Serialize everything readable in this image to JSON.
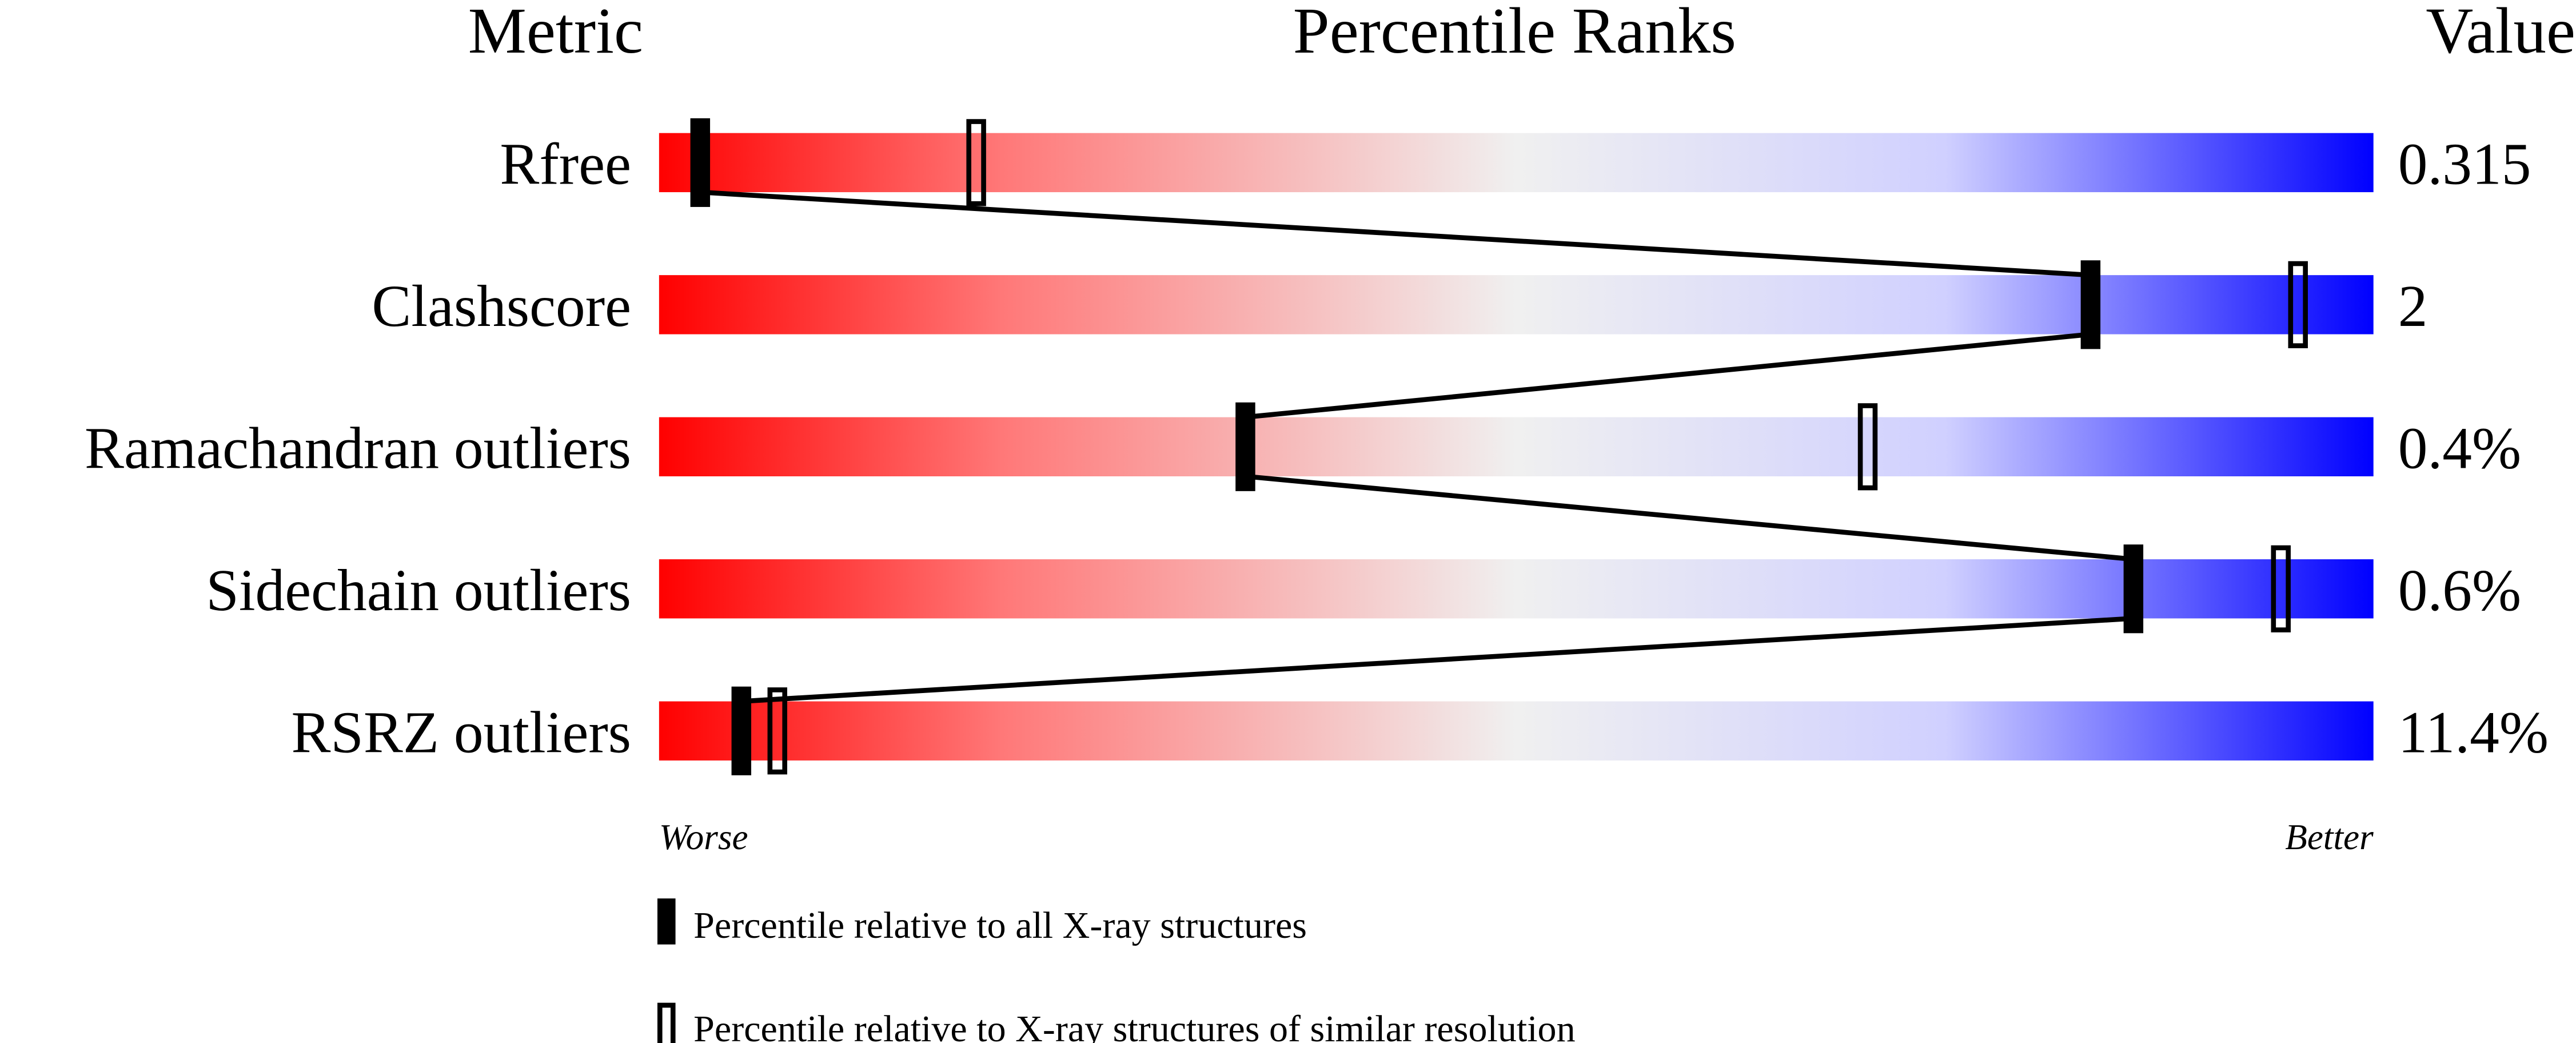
{
  "chart_data": {
    "type": "bar",
    "title": "Percentile Ranks",
    "header_metric": "Metric",
    "header_value": "Value",
    "xlim": [
      0,
      100
    ],
    "x_low_label": "Worse",
    "x_high_label": "Better",
    "gradient_colors": [
      "#ff0000",
      "#ff7878",
      "#f0f0f0",
      "#d0d0ff",
      "#0000ff"
    ],
    "rows": [
      {
        "metric": "Rfree",
        "value": "0.315",
        "percentile_all": 2.4,
        "percentile_similar": 18.5
      },
      {
        "metric": "Clashscore",
        "value": "2",
        "percentile_all": 83.5,
        "percentile_similar": 95.6
      },
      {
        "metric": "Ramachandran outliers",
        "value": "0.4%",
        "percentile_all": 34.2,
        "percentile_similar": 70.5
      },
      {
        "metric": "Sidechain outliers",
        "value": "0.6%",
        "percentile_all": 86.0,
        "percentile_similar": 94.6
      },
      {
        "metric": "RSRZ outliers",
        "value": "11.4%",
        "percentile_all": 4.8,
        "percentile_similar": 6.9
      }
    ],
    "legend": [
      {
        "marker": "filled",
        "label": "Percentile relative to all X-ray structures"
      },
      {
        "marker": "open",
        "label": "Percentile relative to X-ray structures of similar resolution"
      }
    ]
  }
}
